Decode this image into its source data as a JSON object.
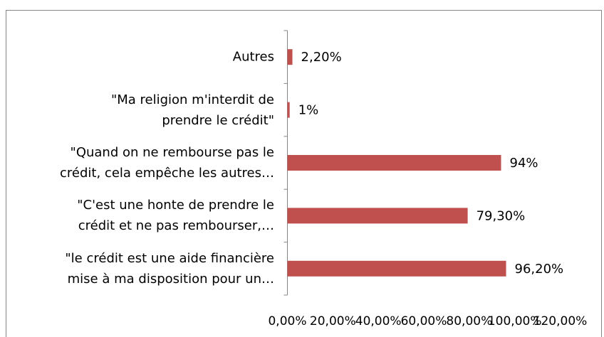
{
  "chart_data": {
    "type": "hbar",
    "categories": [
      "Autres",
      "\"Ma religion m'interdit de\nprendre le crédit\"",
      "\"Quand on ne rembourse pas le\ncrédit, cela empêche les autres…",
      "\"C'est une honte de prendre le\ncrédit et ne pas rembourser,…",
      "\"le crédit est une aide financière\nmise à ma disposition pour un…"
    ],
    "values": [
      2.2,
      1,
      94,
      79.3,
      96.2
    ],
    "value_labels": [
      "2,20%",
      "1%",
      "94%",
      "79,30%",
      "96,20%"
    ],
    "color": "#c0504d",
    "xlim": [
      0,
      120
    ],
    "xticks": [
      {
        "value": 0,
        "label": "0,00%"
      },
      {
        "value": 20,
        "label": "20,00%"
      },
      {
        "value": 40,
        "label": "40,00%"
      },
      {
        "value": 60,
        "label": "60,00%"
      },
      {
        "value": 80,
        "label": "80,00%"
      },
      {
        "value": 100,
        "label": "100,00%"
      },
      {
        "value": 120,
        "label": "120,00%"
      }
    ],
    "grid": false
  }
}
